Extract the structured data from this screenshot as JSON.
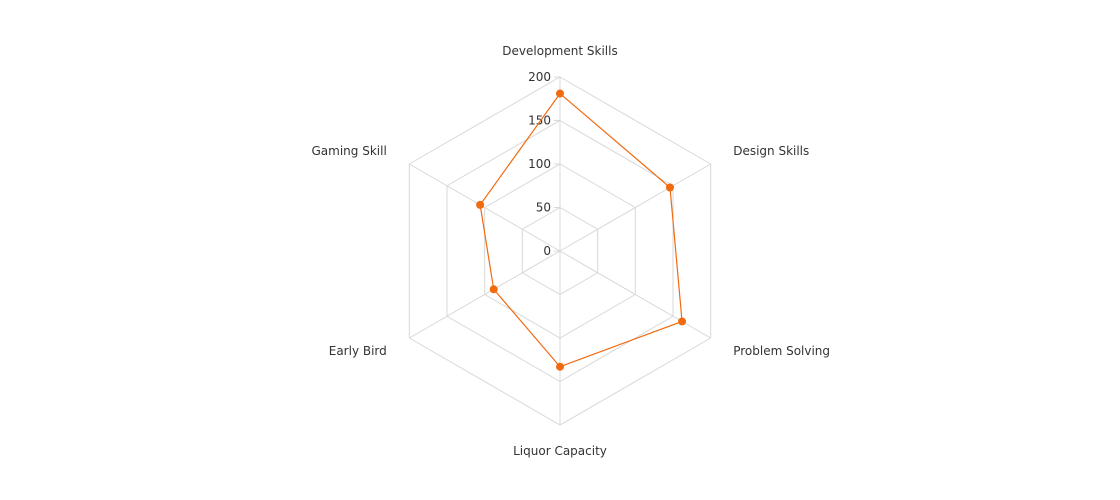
{
  "chart_data": {
    "type": "radar",
    "categories": [
      "Development Skills",
      "Design Skills",
      "Problem Solving",
      "Liquor Capacity",
      "Early Bird",
      "Gaming Skill"
    ],
    "series": [
      {
        "values": [
          181,
          146,
          162,
          133,
          88,
          106
        ]
      }
    ],
    "r_ticks": [
      "0",
      "50",
      "100",
      "150",
      "200"
    ],
    "rlim": [
      0,
      200
    ],
    "series_color": "#f26a10",
    "grid_color": "#d8d8d8"
  }
}
